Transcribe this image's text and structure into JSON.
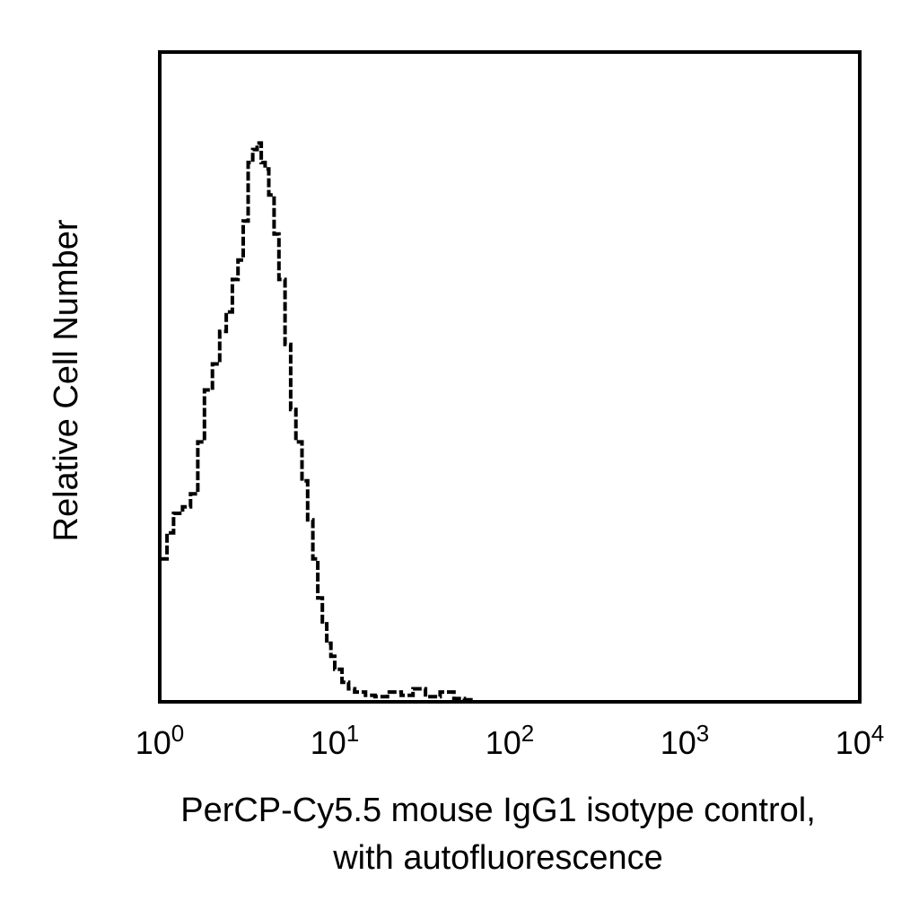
{
  "chart_data": {
    "type": "line",
    "title": "",
    "xlabel": "PerCP-Cy5.5 mouse IgG1 isotype control,",
    "xlabel_line2": "with autofluorescence",
    "ylabel": "Relative Cell Number",
    "x_scale": "log",
    "xlim": [
      1,
      10000
    ],
    "ylim": [
      0,
      100
    ],
    "grid": false,
    "legend": "none",
    "y_ticks_shown": false,
    "x_ticks": [
      {
        "base": "10",
        "exp": "0"
      },
      {
        "base": "10",
        "exp": "1"
      },
      {
        "base": "10",
        "exp": "2"
      },
      {
        "base": "10",
        "exp": "3"
      },
      {
        "base": "10",
        "exp": "4"
      }
    ],
    "series": [
      {
        "line_style": "histogram-step",
        "color": "#000000",
        "x": [
          1.0,
          1.1,
          1.2,
          1.35,
          1.5,
          1.65,
          1.8,
          2.0,
          2.2,
          2.4,
          2.6,
          2.8,
          3.0,
          3.2,
          3.4,
          3.6,
          3.8,
          4.0,
          4.2,
          4.5,
          4.8,
          5.2,
          5.6,
          6.0,
          6.5,
          7.0,
          7.5,
          8.0,
          8.5,
          9.0,
          9.5,
          10.0,
          11.0,
          12.0,
          13.0,
          15.0,
          17.0,
          20.0,
          24.0,
          28.0,
          33.0,
          40.0,
          48.0,
          55.0,
          60.0
        ],
        "y": [
          22,
          26,
          29,
          30,
          32,
          40,
          48,
          52,
          57,
          60,
          65,
          68,
          74,
          83,
          85,
          86,
          83,
          82,
          78,
          72,
          65,
          55,
          45,
          40,
          34,
          28,
          22,
          16,
          12,
          9,
          7,
          5,
          3,
          2,
          1.5,
          1,
          0.8,
          1.5,
          1,
          2,
          0.8,
          1.5,
          0.5,
          0.3,
          0
        ]
      }
    ],
    "colors": {
      "line": "#000000",
      "frame": "#000000",
      "background": "#ffffff"
    }
  }
}
